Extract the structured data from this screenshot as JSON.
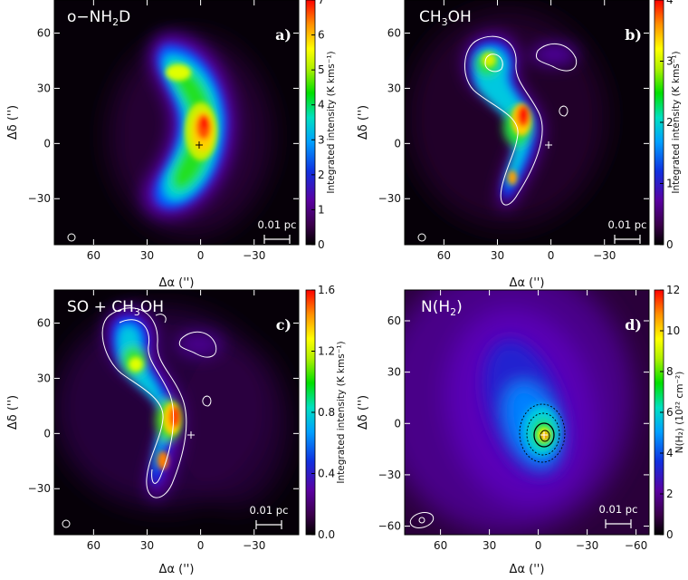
{
  "chart_data": [
    {
      "type": "heatmap",
      "panel": "a)",
      "title": "o−NH2D",
      "title_parts": [
        "o−NH",
        "2",
        "D"
      ],
      "xlabel": "Δα ('')",
      "ylabel": "Δδ ('')",
      "xlim": [
        82,
        -55
      ],
      "ylim": [
        -55,
        78
      ],
      "xticks": [
        60,
        30,
        0,
        -30
      ],
      "yticks": [
        60,
        30,
        0,
        -30
      ],
      "xticklabels": [
        "60",
        "30",
        "0",
        "−30"
      ],
      "yticklabels": [
        "60",
        "30",
        "0",
        "−30"
      ],
      "colorbar": {
        "label": "Integrated intensity (K kms⁻¹)",
        "range": [
          0,
          7
        ],
        "ticks": [
          0,
          1,
          2,
          3,
          4,
          5,
          6,
          7
        ],
        "ticklabels": [
          "0",
          "1",
          "2",
          "3",
          "4",
          "5",
          "6",
          "7"
        ]
      },
      "scalebar": "0.01 pc",
      "beam": "circle",
      "marker": [
        0,
        0
      ]
    },
    {
      "type": "heatmap",
      "panel": "b)",
      "title": "CH3OH",
      "title_parts": [
        "CH",
        "3",
        "OH"
      ],
      "xlabel": "Δα ('')",
      "ylabel": "Δδ ('')",
      "xlim": [
        82,
        -55
      ],
      "ylim": [
        -55,
        78
      ],
      "xticks": [
        60,
        30,
        0,
        -30
      ],
      "yticks": [
        60,
        30,
        0,
        -30
      ],
      "xticklabels": [
        "60",
        "30",
        "0",
        "−30"
      ],
      "yticklabels": [
        "60",
        "30",
        "0",
        "−30"
      ],
      "colorbar": {
        "label": "Integrated intensity (K kms⁻¹)",
        "range": [
          0,
          4
        ],
        "ticks": [
          0,
          1,
          2,
          3,
          4
        ],
        "ticklabels": [
          "0",
          "1",
          "2",
          "3",
          "4"
        ]
      },
      "scalebar": "0.01 pc",
      "beam": "circle",
      "marker": [
        0,
        0
      ]
    },
    {
      "type": "heatmap",
      "panel": "c)",
      "title": "SO + CH3OH",
      "title_parts": [
        "SO + CH",
        "3",
        "OH"
      ],
      "xlabel": "Δα ('')",
      "ylabel": "Δδ ('')",
      "xlim": [
        82,
        -55
      ],
      "ylim": [
        -55,
        78
      ],
      "xticks": [
        60,
        30,
        0,
        -30
      ],
      "yticks": [
        60,
        30,
        0,
        -30
      ],
      "xticklabels": [
        "60",
        "30",
        "0",
        "−30"
      ],
      "yticklabels": [
        "60",
        "30",
        "0",
        "−30"
      ],
      "colorbar": {
        "label": "Integrated intensity (K kms⁻¹)",
        "range": [
          0,
          1.6
        ],
        "ticks": [
          0,
          0.4,
          0.8,
          1.2,
          1.6
        ],
        "ticklabels": [
          "0.0",
          "0.4",
          "0.8",
          "1.2",
          "1.6"
        ]
      },
      "scalebar": "0.01 pc",
      "beam": "circle",
      "marker": [
        0,
        0
      ]
    },
    {
      "type": "heatmap",
      "panel": "d)",
      "title": "N(H2)",
      "title_parts": [
        "N(H",
        "2",
        ")"
      ],
      "xlabel": "Δα ('')",
      "ylabel": "Δδ ('')",
      "xlim": [
        82,
        -68
      ],
      "ylim": [
        -65,
        78
      ],
      "xticks": [
        60,
        30,
        0,
        -30,
        -60
      ],
      "yticks": [
        60,
        30,
        0,
        -30,
        -60
      ],
      "xticklabels": [
        "60",
        "30",
        "0",
        "−30",
        "−60"
      ],
      "yticklabels": [
        "60",
        "30",
        "0",
        "−30",
        "−60"
      ],
      "colorbar": {
        "label": "N(H₂) (10²² cm⁻²)",
        "range": [
          0,
          12
        ],
        "ticks": [
          0,
          2,
          4,
          6,
          8,
          10,
          12
        ],
        "ticklabels": [
          "0",
          "2",
          "4",
          "6",
          "8",
          "10",
          "12"
        ]
      },
      "scalebar": "0.01 pc",
      "beam": "ellipse",
      "marker": [
        0,
        0
      ]
    }
  ]
}
